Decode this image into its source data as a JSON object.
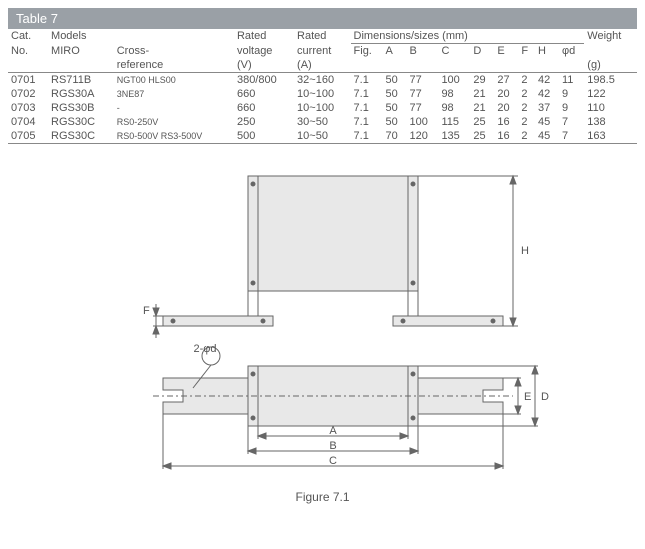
{
  "table": {
    "title": "Table 7",
    "headers": {
      "cat_no_1": "Cat.",
      "cat_no_2": "No.",
      "models": "Models",
      "miro": "MIRO",
      "crossref_1": "Cross-",
      "crossref_2": "reference",
      "rated_v_1": "Rated",
      "rated_v_2": "voltage",
      "rated_v_3": "(V)",
      "rated_i_1": "Rated",
      "rated_i_2": "current",
      "rated_i_3": "(A)",
      "dims": "Dimensions/sizes (mm)",
      "fig": "Fig.",
      "A": "A",
      "B": "B",
      "C": "C",
      "D": "D",
      "E": "E",
      "F": "F",
      "H": "H",
      "phid": "φd",
      "weight_1": "Weight",
      "weight_2": "(g)"
    },
    "rows": [
      {
        "cat": "0701",
        "miro": "RS711B",
        "cross": "NGT00 HLS00",
        "v": "380/800",
        "i": "32~160",
        "fig": "7.1",
        "A": "50",
        "B": "77",
        "C": "100",
        "D": "29",
        "E": "27",
        "F": "2",
        "H": "42",
        "phid": "11",
        "w": "198.5"
      },
      {
        "cat": "0702",
        "miro": "RGS30A",
        "cross": "3NE87",
        "v": "660",
        "i": "10~100",
        "fig": "7.1",
        "A": "50",
        "B": "77",
        "C": "98",
        "D": "21",
        "E": "20",
        "F": "2",
        "H": "42",
        "phid": "9",
        "w": "122"
      },
      {
        "cat": "0703",
        "miro": "RGS30B",
        "cross": "-",
        "v": "660",
        "i": "10~100",
        "fig": "7.1",
        "A": "50",
        "B": "77",
        "C": "98",
        "D": "21",
        "E": "20",
        "F": "2",
        "H": "37",
        "phid": "9",
        "w": "110"
      },
      {
        "cat": "0704",
        "miro": "RGS30C",
        "cross": "RS0-250V",
        "v": "250",
        "i": "30~50",
        "fig": "7.1",
        "A": "50",
        "B": "100",
        "C": "115",
        "D": "25",
        "E": "16",
        "F": "2",
        "H": "45",
        "phid": "7",
        "w": "138"
      },
      {
        "cat": "0705",
        "miro": "RGS30C",
        "cross": "RS0-500V RS3-500V",
        "v": "500",
        "i": "10~50",
        "fig": "7.1",
        "A": "70",
        "B": "120",
        "C": "135",
        "D": "25",
        "E": "16",
        "F": "2",
        "H": "45",
        "phid": "7",
        "w": "163"
      }
    ]
  },
  "figure": {
    "caption": "Figure 7.1",
    "labels": {
      "A": "A",
      "B": "B",
      "C": "C",
      "D": "D",
      "E": "E",
      "F": "F",
      "H": "H",
      "phid": "2-φd"
    },
    "style": {
      "stroke": "#666666",
      "fill_body": "#e8e8e8",
      "fill_none": "none",
      "stroke_width": 1
    }
  }
}
